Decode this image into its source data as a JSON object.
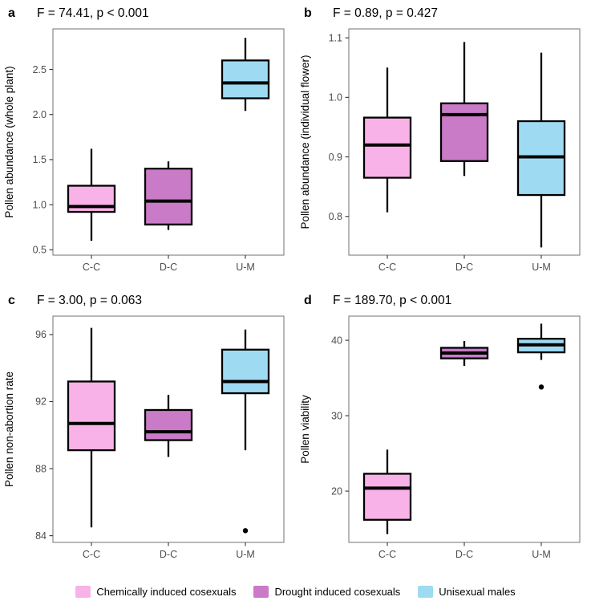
{
  "legend": {
    "items": [
      {
        "label": "Chemically induced cosexuals",
        "color": "#F9B2E7"
      },
      {
        "label": "Drought induced cosexuals",
        "color": "#C97BC7"
      },
      {
        "label": "Unisexual males",
        "color": "#9EDBF3"
      }
    ]
  },
  "style": {
    "panel_border_color": "#7f7f7f",
    "tick_color": "#333333",
    "tick_label_color": "#4d4d4d",
    "box_stroke_color": "#000000"
  },
  "chart_data": [
    {
      "type": "box",
      "panel_label": "a",
      "title": "F = 74.41, p < 0.001",
      "ylabel": "Pollen abundance (whole plant)",
      "ylim": [
        0.44,
        2.95
      ],
      "yticks": [
        "0.5",
        "1.0",
        "1.5",
        "2.0",
        "2.5"
      ],
      "categories": [
        "C-C",
        "D-C",
        "U-M"
      ],
      "boxes": [
        {
          "group": "C-C",
          "low": 0.6,
          "q1": 0.92,
          "median": 0.98,
          "q3": 1.21,
          "high": 1.62,
          "outliers": []
        },
        {
          "group": "D-C",
          "low": 0.72,
          "q1": 0.78,
          "median": 1.04,
          "q3": 1.4,
          "high": 1.48,
          "outliers": []
        },
        {
          "group": "U-M",
          "low": 2.04,
          "q1": 2.18,
          "median": 2.35,
          "q3": 2.6,
          "high": 2.85,
          "outliers": []
        }
      ]
    },
    {
      "type": "box",
      "panel_label": "b",
      "title": "F = 0.89, p = 0.427",
      "ylabel": "Pollen abundance (individual flower)",
      "ylim": [
        0.735,
        1.115
      ],
      "yticks": [
        "0.8",
        "0.9",
        "1.0",
        "1.1"
      ],
      "categories": [
        "C-C",
        "D-C",
        "U-M"
      ],
      "boxes": [
        {
          "group": "C-C",
          "low": 0.807,
          "q1": 0.865,
          "median": 0.92,
          "q3": 0.966,
          "high": 1.05,
          "outliers": []
        },
        {
          "group": "D-C",
          "low": 0.868,
          "q1": 0.893,
          "median": 0.971,
          "q3": 0.99,
          "high": 1.093,
          "outliers": []
        },
        {
          "group": "U-M",
          "low": 0.748,
          "q1": 0.836,
          "median": 0.9,
          "q3": 0.96,
          "high": 1.075,
          "outliers": []
        }
      ]
    },
    {
      "type": "box",
      "panel_label": "c",
      "title": "F = 3.00, p = 0.063",
      "ylabel": "Pollen non-abortion rate",
      "ylim": [
        83.6,
        97.1
      ],
      "yticks": [
        "84",
        "88",
        "92",
        "96"
      ],
      "categories": [
        "C-C",
        "D-C",
        "U-M"
      ],
      "boxes": [
        {
          "group": "C-C",
          "low": 84.5,
          "q1": 89.1,
          "median": 90.7,
          "q3": 93.2,
          "high": 96.4,
          "outliers": []
        },
        {
          "group": "D-C",
          "low": 88.7,
          "q1": 89.7,
          "median": 90.2,
          "q3": 91.5,
          "high": 92.4,
          "outliers": []
        },
        {
          "group": "U-M",
          "low": 89.1,
          "q1": 92.5,
          "median": 93.2,
          "q3": 95.1,
          "high": 96.3,
          "outliers": [
            84.3
          ]
        }
      ]
    },
    {
      "type": "box",
      "panel_label": "d",
      "title": "F = 189.70, p < 0.001",
      "ylabel": "Pollen viability",
      "ylim": [
        13.2,
        43.2
      ],
      "yticks": [
        "20",
        "30",
        "40"
      ],
      "categories": [
        "C-C",
        "D-C",
        "U-M"
      ],
      "boxes": [
        {
          "group": "C-C",
          "low": 14.3,
          "q1": 16.2,
          "median": 20.4,
          "q3": 22.3,
          "high": 25.5,
          "outliers": []
        },
        {
          "group": "D-C",
          "low": 36.6,
          "q1": 37.6,
          "median": 38.3,
          "q3": 39.0,
          "high": 39.9,
          "outliers": []
        },
        {
          "group": "U-M",
          "low": 37.4,
          "q1": 38.4,
          "median": 39.4,
          "q3": 40.2,
          "high": 42.2,
          "outliers": [
            33.8
          ]
        }
      ]
    }
  ]
}
